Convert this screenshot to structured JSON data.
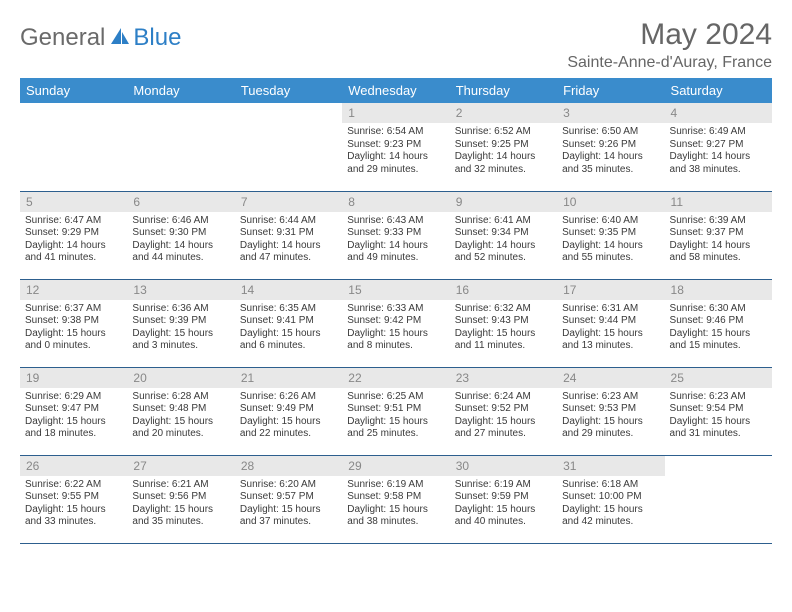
{
  "logo": {
    "general": "General",
    "blue": "Blue"
  },
  "title": "May 2024",
  "location": "Sainte-Anne-d'Auray, France",
  "colors": {
    "header_bg": "#3a8ccc",
    "header_text": "#ffffff",
    "daynum_bg": "#e8e8e8",
    "daynum_text": "#888888",
    "body_text": "#3a3a3a",
    "border": "#2d5f8e",
    "title_text": "#666666",
    "logo_general": "#6a6a6a",
    "logo_blue": "#2d7fc6"
  },
  "weekdays": [
    "Sunday",
    "Monday",
    "Tuesday",
    "Wednesday",
    "Thursday",
    "Friday",
    "Saturday"
  ],
  "weeks": [
    [
      null,
      null,
      null,
      {
        "n": "1",
        "sr": "Sunrise: 6:54 AM",
        "ss": "Sunset: 9:23 PM",
        "d1": "Daylight: 14 hours",
        "d2": "and 29 minutes."
      },
      {
        "n": "2",
        "sr": "Sunrise: 6:52 AM",
        "ss": "Sunset: 9:25 PM",
        "d1": "Daylight: 14 hours",
        "d2": "and 32 minutes."
      },
      {
        "n": "3",
        "sr": "Sunrise: 6:50 AM",
        "ss": "Sunset: 9:26 PM",
        "d1": "Daylight: 14 hours",
        "d2": "and 35 minutes."
      },
      {
        "n": "4",
        "sr": "Sunrise: 6:49 AM",
        "ss": "Sunset: 9:27 PM",
        "d1": "Daylight: 14 hours",
        "d2": "and 38 minutes."
      }
    ],
    [
      {
        "n": "5",
        "sr": "Sunrise: 6:47 AM",
        "ss": "Sunset: 9:29 PM",
        "d1": "Daylight: 14 hours",
        "d2": "and 41 minutes."
      },
      {
        "n": "6",
        "sr": "Sunrise: 6:46 AM",
        "ss": "Sunset: 9:30 PM",
        "d1": "Daylight: 14 hours",
        "d2": "and 44 minutes."
      },
      {
        "n": "7",
        "sr": "Sunrise: 6:44 AM",
        "ss": "Sunset: 9:31 PM",
        "d1": "Daylight: 14 hours",
        "d2": "and 47 minutes."
      },
      {
        "n": "8",
        "sr": "Sunrise: 6:43 AM",
        "ss": "Sunset: 9:33 PM",
        "d1": "Daylight: 14 hours",
        "d2": "and 49 minutes."
      },
      {
        "n": "9",
        "sr": "Sunrise: 6:41 AM",
        "ss": "Sunset: 9:34 PM",
        "d1": "Daylight: 14 hours",
        "d2": "and 52 minutes."
      },
      {
        "n": "10",
        "sr": "Sunrise: 6:40 AM",
        "ss": "Sunset: 9:35 PM",
        "d1": "Daylight: 14 hours",
        "d2": "and 55 minutes."
      },
      {
        "n": "11",
        "sr": "Sunrise: 6:39 AM",
        "ss": "Sunset: 9:37 PM",
        "d1": "Daylight: 14 hours",
        "d2": "and 58 minutes."
      }
    ],
    [
      {
        "n": "12",
        "sr": "Sunrise: 6:37 AM",
        "ss": "Sunset: 9:38 PM",
        "d1": "Daylight: 15 hours",
        "d2": "and 0 minutes."
      },
      {
        "n": "13",
        "sr": "Sunrise: 6:36 AM",
        "ss": "Sunset: 9:39 PM",
        "d1": "Daylight: 15 hours",
        "d2": "and 3 minutes."
      },
      {
        "n": "14",
        "sr": "Sunrise: 6:35 AM",
        "ss": "Sunset: 9:41 PM",
        "d1": "Daylight: 15 hours",
        "d2": "and 6 minutes."
      },
      {
        "n": "15",
        "sr": "Sunrise: 6:33 AM",
        "ss": "Sunset: 9:42 PM",
        "d1": "Daylight: 15 hours",
        "d2": "and 8 minutes."
      },
      {
        "n": "16",
        "sr": "Sunrise: 6:32 AM",
        "ss": "Sunset: 9:43 PM",
        "d1": "Daylight: 15 hours",
        "d2": "and 11 minutes."
      },
      {
        "n": "17",
        "sr": "Sunrise: 6:31 AM",
        "ss": "Sunset: 9:44 PM",
        "d1": "Daylight: 15 hours",
        "d2": "and 13 minutes."
      },
      {
        "n": "18",
        "sr": "Sunrise: 6:30 AM",
        "ss": "Sunset: 9:46 PM",
        "d1": "Daylight: 15 hours",
        "d2": "and 15 minutes."
      }
    ],
    [
      {
        "n": "19",
        "sr": "Sunrise: 6:29 AM",
        "ss": "Sunset: 9:47 PM",
        "d1": "Daylight: 15 hours",
        "d2": "and 18 minutes."
      },
      {
        "n": "20",
        "sr": "Sunrise: 6:28 AM",
        "ss": "Sunset: 9:48 PM",
        "d1": "Daylight: 15 hours",
        "d2": "and 20 minutes."
      },
      {
        "n": "21",
        "sr": "Sunrise: 6:26 AM",
        "ss": "Sunset: 9:49 PM",
        "d1": "Daylight: 15 hours",
        "d2": "and 22 minutes."
      },
      {
        "n": "22",
        "sr": "Sunrise: 6:25 AM",
        "ss": "Sunset: 9:51 PM",
        "d1": "Daylight: 15 hours",
        "d2": "and 25 minutes."
      },
      {
        "n": "23",
        "sr": "Sunrise: 6:24 AM",
        "ss": "Sunset: 9:52 PM",
        "d1": "Daylight: 15 hours",
        "d2": "and 27 minutes."
      },
      {
        "n": "24",
        "sr": "Sunrise: 6:23 AM",
        "ss": "Sunset: 9:53 PM",
        "d1": "Daylight: 15 hours",
        "d2": "and 29 minutes."
      },
      {
        "n": "25",
        "sr": "Sunrise: 6:23 AM",
        "ss": "Sunset: 9:54 PM",
        "d1": "Daylight: 15 hours",
        "d2": "and 31 minutes."
      }
    ],
    [
      {
        "n": "26",
        "sr": "Sunrise: 6:22 AM",
        "ss": "Sunset: 9:55 PM",
        "d1": "Daylight: 15 hours",
        "d2": "and 33 minutes."
      },
      {
        "n": "27",
        "sr": "Sunrise: 6:21 AM",
        "ss": "Sunset: 9:56 PM",
        "d1": "Daylight: 15 hours",
        "d2": "and 35 minutes."
      },
      {
        "n": "28",
        "sr": "Sunrise: 6:20 AM",
        "ss": "Sunset: 9:57 PM",
        "d1": "Daylight: 15 hours",
        "d2": "and 37 minutes."
      },
      {
        "n": "29",
        "sr": "Sunrise: 6:19 AM",
        "ss": "Sunset: 9:58 PM",
        "d1": "Daylight: 15 hours",
        "d2": "and 38 minutes."
      },
      {
        "n": "30",
        "sr": "Sunrise: 6:19 AM",
        "ss": "Sunset: 9:59 PM",
        "d1": "Daylight: 15 hours",
        "d2": "and 40 minutes."
      },
      {
        "n": "31",
        "sr": "Sunrise: 6:18 AM",
        "ss": "Sunset: 10:00 PM",
        "d1": "Daylight: 15 hours",
        "d2": "and 42 minutes."
      },
      null
    ]
  ]
}
